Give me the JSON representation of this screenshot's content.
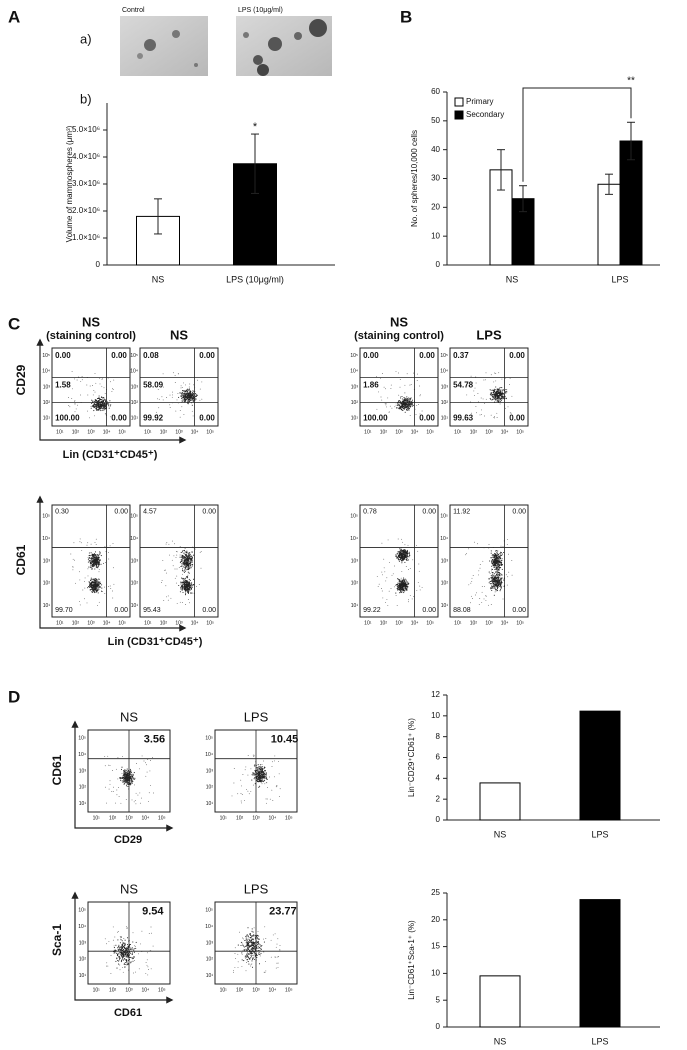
{
  "panel_labels": [
    "A",
    "B",
    "C",
    "D"
  ],
  "images": {
    "sub_labels": [
      "a)",
      "b)"
    ],
    "captions": [
      "Control",
      "LPS (10μg/ml)"
    ]
  },
  "chart_data": [
    {
      "type": "bar",
      "ylabel": "Volume of mammospheres (μm³)",
      "annotation": "*",
      "categories": [
        "NS",
        "LPS (10μg/ml)"
      ],
      "values": [
        1800000,
        3750000
      ],
      "errors": [
        650000,
        1100000
      ],
      "colors": [
        "#ffffff",
        "#000000"
      ],
      "ylim": [
        0,
        6000000
      ],
      "yticks": [
        0,
        {
          "value": 1000000,
          "label": "1.0×10⁶"
        },
        {
          "value": 2000000,
          "label": "2.0×10⁶"
        },
        {
          "value": 3000000,
          "label": "3.0×10⁶"
        },
        {
          "value": 4000000,
          "label": "4.0×10⁶"
        },
        {
          "value": 5000000,
          "label": "5.0×10⁶"
        }
      ]
    },
    {
      "type": "grouped_bar",
      "ylabel": "No. of spheres/10,000 cells",
      "annotation": "**",
      "categories": [
        "NS",
        "LPS"
      ],
      "series": [
        {
          "name": "Primary",
          "color": "#ffffff",
          "values": [
            33,
            28
          ],
          "errors": [
            7,
            3.5
          ]
        },
        {
          "name": "Secondary",
          "color": "#000000",
          "values": [
            23,
            43
          ],
          "errors": [
            4.5,
            6.5
          ]
        }
      ],
      "ylim": [
        0,
        60
      ],
      "yticks": [
        0,
        10,
        20,
        30,
        40,
        50,
        60
      ]
    },
    {
      "type": "bar",
      "ylabel": "Lin⁻CD29⁺CD61⁺ (%)",
      "categories": [
        "NS",
        "LPS"
      ],
      "values": [
        3.56,
        10.45
      ],
      "colors": [
        "#ffffff",
        "#000000"
      ],
      "ylim": [
        0,
        12
      ],
      "yticks": [
        0,
        2,
        4,
        6,
        8,
        10,
        12
      ]
    },
    {
      "type": "bar",
      "ylabel": "Lin⁻CD61⁺Sca-1⁺ (%)",
      "categories": [
        "NS",
        "LPS"
      ],
      "values": [
        9.54,
        23.77
      ],
      "colors": [
        "#ffffff",
        "#000000"
      ],
      "ylim": [
        0,
        25
      ],
      "yticks": [
        0,
        5,
        10,
        15,
        20,
        25
      ]
    }
  ],
  "flow": {
    "tick_labels": [
      "10¹",
      "10²",
      "10³",
      "10⁴",
      "10⁵"
    ],
    "groups": [
      {
        "y_label": "CD29",
        "x_label": "Lin (CD31⁺CD45⁺)",
        "plots": [
          {
            "title": [
              "NS",
              "(staining control)"
            ],
            "quadrants": [
              "0.00",
              "0.00",
              "1.58",
              "100.00",
              "0.00"
            ]
          },
          {
            "title": [
              "NS"
            ],
            "quadrants": [
              "0.08",
              "0.00",
              "58.09",
              "99.92",
              "0.00"
            ]
          },
          {
            "title": [
              "NS",
              "(staining control)"
            ],
            "quadrants": [
              "0.00",
              "0.00",
              "1.86",
              "100.00",
              "0.00"
            ]
          },
          {
            "title": [
              "LPS"
            ],
            "quadrants": [
              "0.37",
              "0.00",
              "54.78",
              "99.63",
              "0.00"
            ]
          }
        ]
      },
      {
        "y_label": "CD61",
        "x_label": "Lin (CD31⁺CD45⁺)",
        "plots": [
          {
            "quadrants": [
              "0.30",
              "0.00",
              "99.70",
              "0.00"
            ]
          },
          {
            "quadrants": [
              "4.57",
              "0.00",
              "95.43",
              "0.00"
            ]
          },
          {
            "quadrants": [
              "0.78",
              "0.00",
              "99.22",
              "0.00"
            ]
          },
          {
            "quadrants": [
              "11.92",
              "0.00",
              "88.08",
              "0.00"
            ]
          }
        ]
      },
      {
        "y_label": "CD61",
        "x_label": "CD29",
        "plots": [
          {
            "title": [
              "NS"
            ],
            "quadrants": [
              "3.56"
            ]
          },
          {
            "title": [
              "LPS"
            ],
            "quadrants": [
              "10.45"
            ]
          }
        ]
      },
      {
        "y_label": "Sca-1",
        "x_label": "CD61",
        "plots": [
          {
            "title": [
              "NS"
            ],
            "quadrants": [
              "9.54"
            ]
          },
          {
            "title": [
              "LPS"
            ],
            "quadrants": [
              "23.77"
            ]
          }
        ]
      }
    ]
  }
}
